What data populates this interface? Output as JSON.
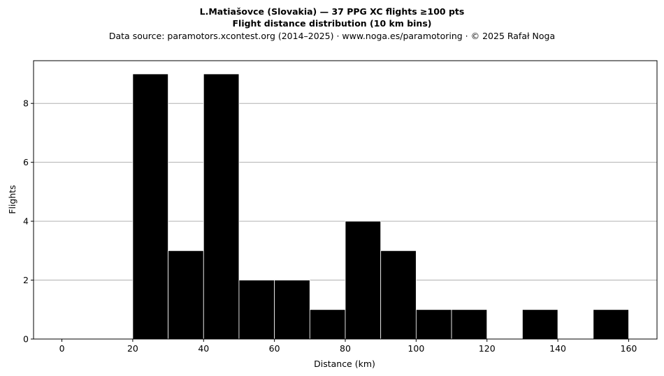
{
  "chart_data": {
    "type": "bar",
    "title_line1": "L.Matiašovce (Slovakia)  —  37 PPG XC flights ≥100 pts",
    "title_line2": "Flight distance distribution (10 km bins)",
    "subtitle": "Data source: paramotors.xcontest.org (2014–2025)  ·  www.noga.es/paramotoring  ·  © 2025 Rafał Noga",
    "xlabel": "Distance (km)",
    "ylabel": "Flights",
    "bin_width": 10,
    "bins": [
      {
        "start": 20,
        "end": 30,
        "value": 9
      },
      {
        "start": 30,
        "end": 40,
        "value": 3
      },
      {
        "start": 40,
        "end": 50,
        "value": 9
      },
      {
        "start": 50,
        "end": 60,
        "value": 2
      },
      {
        "start": 60,
        "end": 70,
        "value": 2
      },
      {
        "start": 70,
        "end": 80,
        "value": 1
      },
      {
        "start": 80,
        "end": 90,
        "value": 4
      },
      {
        "start": 90,
        "end": 100,
        "value": 3
      },
      {
        "start": 100,
        "end": 110,
        "value": 1
      },
      {
        "start": 110,
        "end": 120,
        "value": 1
      },
      {
        "start": 130,
        "end": 140,
        "value": 1
      },
      {
        "start": 150,
        "end": 160,
        "value": 1
      }
    ],
    "xlim": [
      -8,
      168
    ],
    "ylim": [
      0,
      9.45
    ],
    "xticks": [
      0,
      20,
      40,
      60,
      80,
      100,
      120,
      140,
      160
    ],
    "yticks": [
      0,
      2,
      4,
      6,
      8
    ],
    "grid": "horizontal",
    "bar_color": "#000000",
    "bar_edge_color": "#ffffff",
    "grid_color": "#b0b0b0"
  }
}
